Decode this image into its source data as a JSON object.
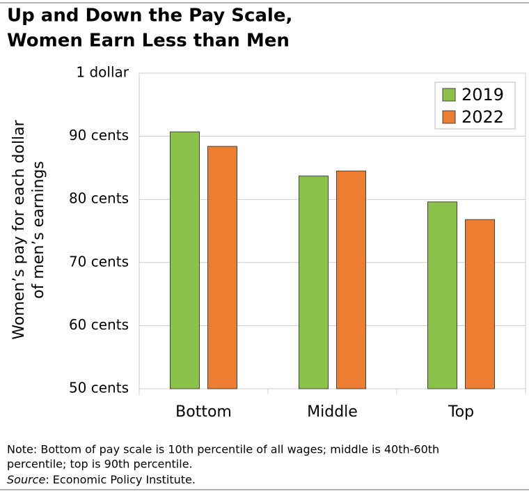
{
  "chart_data": {
    "type": "bar",
    "title": [
      "Up and Down the Pay Scale,",
      "Women Earn Less than Men"
    ],
    "ylabel": [
      "Women’s pay for each dollar",
      "of men’s earnings"
    ],
    "categories": [
      "Bottom",
      "Middle",
      "Top"
    ],
    "series": [
      {
        "name": "2019",
        "color": "#8bc34a",
        "values": [
          90.7,
          83.7,
          79.6
        ]
      },
      {
        "name": "2022",
        "color": "#ed7d31",
        "values": [
          88.4,
          84.5,
          76.8
        ]
      }
    ],
    "ylim": [
      50,
      100
    ],
    "yticks": [
      {
        "value": 50,
        "label": "50 cents"
      },
      {
        "value": 60,
        "label": "60 cents"
      },
      {
        "value": 70,
        "label": "70 cents"
      },
      {
        "value": 80,
        "label": "80 cents"
      },
      {
        "value": 90,
        "label": "90 cents"
      },
      {
        "value": 100,
        "label": "1 dollar"
      }
    ],
    "grid": true,
    "legend": "upper right",
    "note": [
      "Note: Bottom of pay scale is 10th percentile of all wages; middle is 40th-60th",
      "percentile; top is 90th percentile."
    ],
    "source_label": "Source",
    "source_text": ": Economic Policy Institute."
  }
}
